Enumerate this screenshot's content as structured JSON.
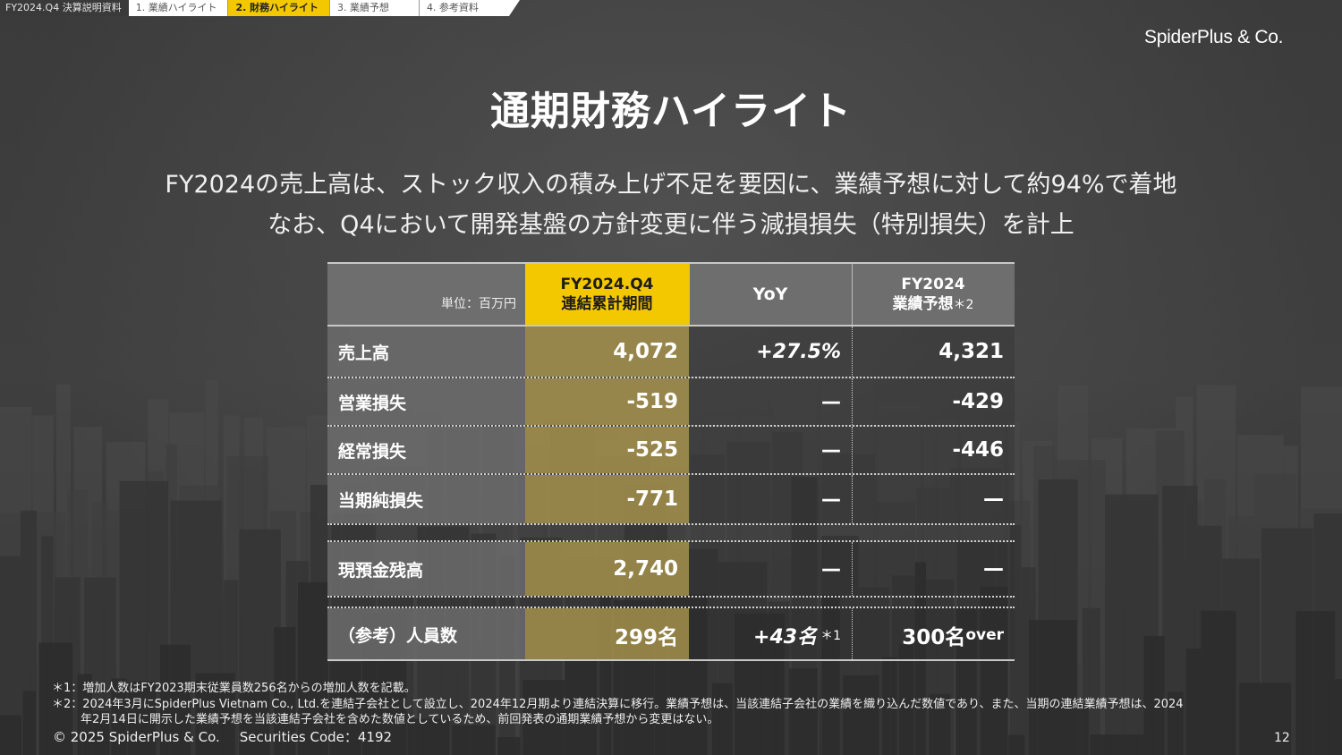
{
  "nav": {
    "doc_label": "FY2024.Q4 決算説明資料",
    "tabs": [
      {
        "label": "1. 業績ハイライト",
        "active": false
      },
      {
        "label": "2. 財務ハイライト",
        "active": true
      },
      {
        "label": "3. 業績予想",
        "active": false
      },
      {
        "label": "4. 参考資料",
        "active": false
      }
    ]
  },
  "logo": "SpiderPlus & Co.",
  "title": "通期財務ハイライト",
  "subtitle": {
    "line1": "FY2024の売上高は、ストック収入の積み上げ不足を要因に、業績予想に対して約94%で着地",
    "line2": "なお、Q4において開発基盤の方針変更に伴う減損損失（特別損失）を計上"
  },
  "table": {
    "unit": "単位：百万円",
    "headers": {
      "current_line1": "FY2024.Q4",
      "current_line2": "連結累計期間",
      "yoy": "YoY",
      "forecast_line1": "FY2024",
      "forecast_line2": "業績予想",
      "forecast_note": "＊2"
    },
    "rows": [
      {
        "label": "売上高",
        "current": "4,072",
        "yoy": "+27.5%",
        "forecast": "4,321"
      },
      {
        "label": "営業損失",
        "current": "-519",
        "yoy": "—",
        "forecast": "-429"
      },
      {
        "label": "経常損失",
        "current": "-525",
        "yoy": "—",
        "forecast": "-446"
      },
      {
        "label": "当期純損失",
        "current": "-771",
        "yoy": "—",
        "forecast": "—"
      }
    ],
    "cash": {
      "label": "現預金残高",
      "current": "2,740",
      "yoy": "—",
      "forecast": "—"
    },
    "headcount": {
      "label": "（参考）人員数",
      "current": "299名",
      "yoy": "+43名",
      "yoy_note": "＊1",
      "forecast": "300名",
      "forecast_suffix": "over"
    }
  },
  "footnotes": {
    "note1": "＊1：増加人数はFY2023期末従業員数256名からの増加人数を記載。",
    "note2": "＊2：2024年3月にSpiderPlus Vietnam Co., Ltd.を連結子会社として設立し、2024年12月期より連結決算に移行。業績予想は、当該連結子会社の業績を織り込んだ数値であり、また、当期の連結業績予想は、2024",
    "note3": "年2月14日に開示した業績予想を当該連結子会社を含めた数値としているため、前回発表の通期業績予想から変更はない。"
  },
  "footer": {
    "copyright": "© 2025 SpiderPlus & Co.",
    "securities": "Securities Code：4192",
    "page": "12"
  },
  "colors": {
    "accent": "#f3c800",
    "header_gray": "#6e6e6e",
    "current_col": "#a5914b"
  }
}
